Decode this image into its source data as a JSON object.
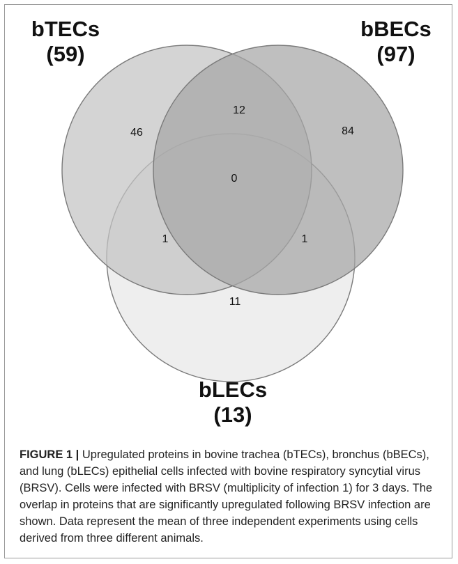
{
  "sets": [
    {
      "name": "bTECs",
      "count": "(59)"
    },
    {
      "name": "bBECs",
      "count": "(97)"
    },
    {
      "name": "bLECs",
      "count": "(13)"
    }
  ],
  "regions": {
    "bTECs_only": "46",
    "bBECs_only": "84",
    "bLECs_only": "11",
    "bTECs_bBECs": "12",
    "bTECs_bLECs": "1",
    "bBECs_bLECs": "1",
    "all_three": "0"
  },
  "colors": {
    "bTECs_fill": "#c3c3c3",
    "bBECs_fill": "#a6a6a6",
    "bLECs_fill": "#e8e8e8",
    "outline": "#7a7a7a"
  },
  "caption": {
    "label": "FIGURE 1 |",
    "text": " Upregulated proteins in bovine trachea (bTECs), bronchus (bBECs), and lung (bLECs) epithelial cells infected with bovine respiratory syncytial virus (BRSV). Cells were infected with BRSV (multiplicity of infection 1) for 3 days. The overlap in proteins that are significantly upregulated following BRSV infection are shown. Data represent the mean of three independent experiments using cells derived from three different animals."
  }
}
